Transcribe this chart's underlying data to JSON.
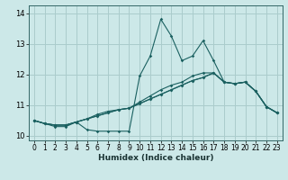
{
  "title": "",
  "xlabel": "Humidex (Indice chaleur)",
  "bg_color": "#cce8e8",
  "grid_color": "#aacccc",
  "line_color": "#1a6060",
  "xlim": [
    -0.5,
    23.5
  ],
  "ylim": [
    9.85,
    14.25
  ],
  "xticks": [
    0,
    1,
    2,
    3,
    4,
    5,
    6,
    7,
    8,
    9,
    10,
    11,
    12,
    13,
    14,
    15,
    16,
    17,
    18,
    19,
    20,
    21,
    22,
    23
  ],
  "yticks": [
    10,
    11,
    12,
    13,
    14
  ],
  "series": [
    [
      10.5,
      10.4,
      10.3,
      10.3,
      10.45,
      10.2,
      10.15,
      10.15,
      10.15,
      10.15,
      11.95,
      12.6,
      13.8,
      13.25,
      12.45,
      12.6,
      13.1,
      12.45,
      11.75,
      11.7,
      11.75,
      11.45,
      10.95,
      10.75
    ],
    [
      10.5,
      10.4,
      10.35,
      10.35,
      10.45,
      10.55,
      10.65,
      10.75,
      10.85,
      10.9,
      11.05,
      11.2,
      11.35,
      11.5,
      11.65,
      11.8,
      11.9,
      12.05,
      11.75,
      11.7,
      11.75,
      11.45,
      10.95,
      10.75
    ],
    [
      10.5,
      10.4,
      10.35,
      10.35,
      10.45,
      10.55,
      10.7,
      10.8,
      10.85,
      10.9,
      11.1,
      11.3,
      11.5,
      11.65,
      11.75,
      11.95,
      12.05,
      12.05,
      11.75,
      11.7,
      11.75,
      11.45,
      10.95,
      10.75
    ],
    [
      10.5,
      10.4,
      10.35,
      10.35,
      10.45,
      10.55,
      10.65,
      10.75,
      10.85,
      10.9,
      11.05,
      11.2,
      11.35,
      11.5,
      11.65,
      11.8,
      11.9,
      12.05,
      11.75,
      11.7,
      11.75,
      11.45,
      10.95,
      10.75
    ]
  ]
}
